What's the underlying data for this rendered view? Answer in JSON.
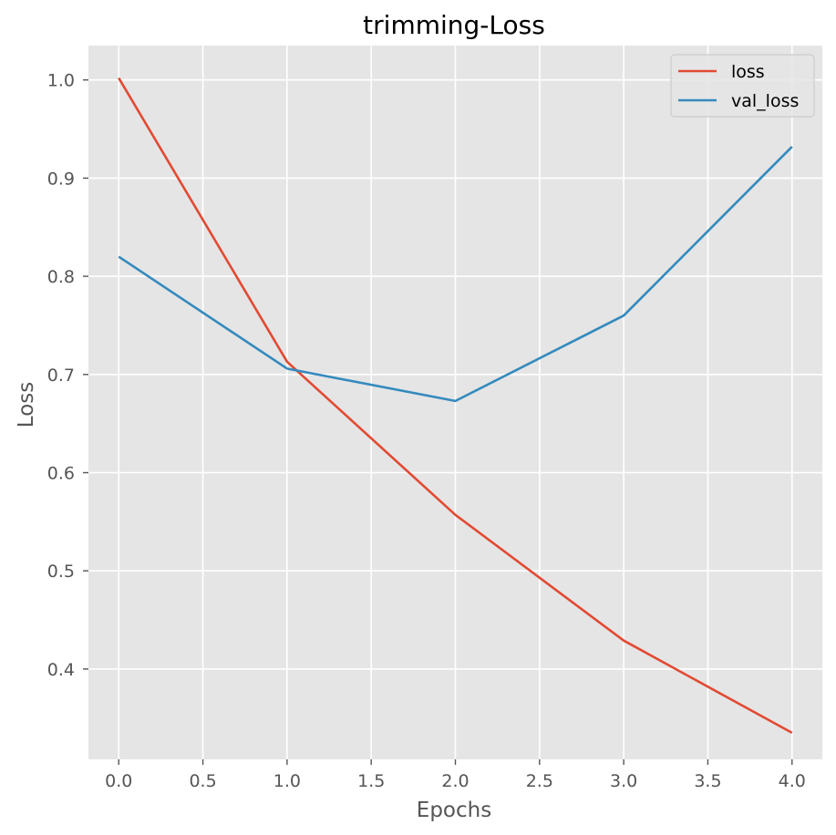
{
  "chart_data": {
    "type": "line",
    "title": "trimming-Loss",
    "xlabel": "Epochs",
    "ylabel": "Loss",
    "x": [
      0,
      1,
      2,
      3,
      4
    ],
    "series": [
      {
        "name": "loss",
        "values": [
          1.002,
          0.713,
          0.557,
          0.429,
          0.335
        ],
        "color": "#e24a33"
      },
      {
        "name": "val_loss",
        "values": [
          0.82,
          0.706,
          0.673,
          0.76,
          0.932
        ],
        "color": "#348abd"
      }
    ],
    "xlim": [
      -0.18,
      4.18
    ],
    "ylim": [
      0.308,
      1.035
    ],
    "xticks": [
      0.0,
      0.5,
      1.0,
      1.5,
      2.0,
      2.5,
      3.0,
      3.5,
      4.0
    ],
    "xtick_labels": [
      "0.0",
      "0.5",
      "1.0",
      "1.5",
      "2.0",
      "2.5",
      "3.0",
      "3.5",
      "4.0"
    ],
    "yticks": [
      0.4,
      0.5,
      0.6,
      0.7,
      0.8,
      0.9,
      1.0
    ],
    "ytick_labels": [
      "0.4",
      "0.5",
      "0.6",
      "0.7",
      "0.8",
      "0.9",
      "1.0"
    ],
    "grid": true,
    "legend_position": "top-right",
    "plot_background": "#e5e5e5",
    "grid_color": "#ffffff"
  }
}
